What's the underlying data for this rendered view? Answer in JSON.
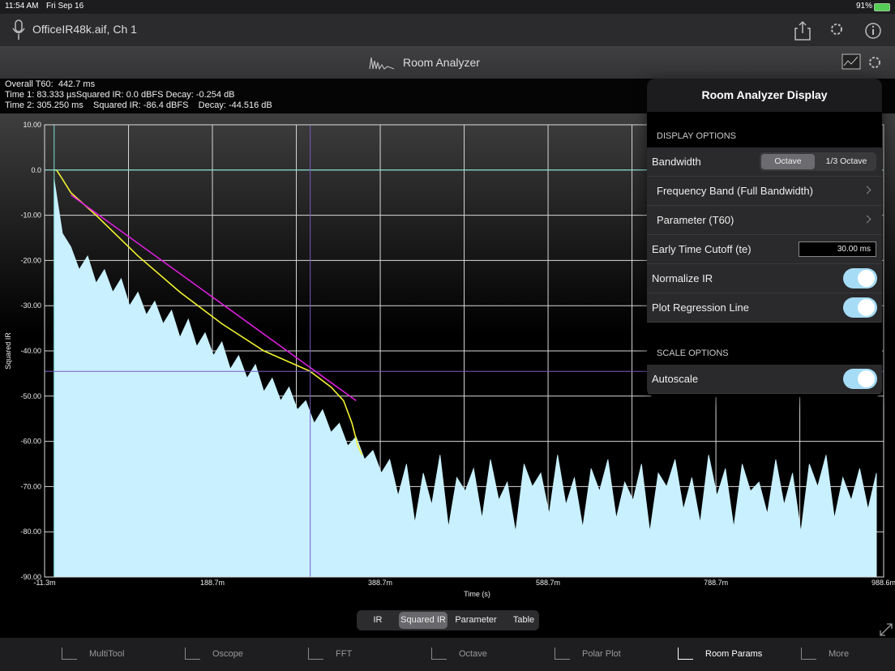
{
  "status_bar": {
    "time": "11:54 AM",
    "date": "Fri Sep 16",
    "battery": "91%"
  },
  "header": {
    "file": "OfficeIR48k.aif, Ch 1",
    "title": "Room Analyzer"
  },
  "info": [
    "Overall T60:  442.7 ms",
    "Time 1: 83.333 µsSquared IR: 0.0 dBFS Decay: -0.254 dB",
    "Time 2: 305.250 ms    Squared IR: -86.4 dBFS    Decay: -44.516 dB"
  ],
  "chart_data": {
    "type": "line",
    "xlabel": "Time (s)",
    "ylabel": "Squared IR",
    "xlim": [
      -0.0113,
      0.9886
    ],
    "ylim": [
      -90,
      10
    ],
    "xticks": [
      {
        "value": -0.0113,
        "label": "-11.3m"
      },
      {
        "value": 0.1887,
        "label": "188.7m"
      },
      {
        "value": 0.3887,
        "label": "388.7m"
      },
      {
        "value": 0.5887,
        "label": "588.7m"
      },
      {
        "value": 0.7887,
        "label": "788.7m"
      },
      {
        "value": 0.9886,
        "label": "988.6m"
      }
    ],
    "minor_xticks": [
      0.0887,
      0.2887,
      0.4887,
      0.6887,
      0.8887
    ],
    "yticks": [
      {
        "value": 10,
        "label": "10.00"
      },
      {
        "value": 0,
        "label": "0.0"
      },
      {
        "value": -10,
        "label": "-10.00"
      },
      {
        "value": -20,
        "label": "-20.00"
      },
      {
        "value": -30,
        "label": "-30.00"
      },
      {
        "value": -40,
        "label": "-40.00"
      },
      {
        "value": -50,
        "label": "-50.00"
      },
      {
        "value": -60,
        "label": "-60.00"
      },
      {
        "value": -70,
        "label": "-70.00"
      },
      {
        "value": -80,
        "label": "-80.00"
      },
      {
        "value": -90,
        "label": "-90.00"
      }
    ],
    "grid": true,
    "series": [
      {
        "style": "area",
        "color": "#c8f0ff",
        "x": [
          0,
          0.01,
          0.02,
          0.03,
          0.04,
          0.05,
          0.06,
          0.07,
          0.08,
          0.09,
          0.1,
          0.11,
          0.12,
          0.13,
          0.14,
          0.15,
          0.16,
          0.17,
          0.18,
          0.19,
          0.2,
          0.21,
          0.22,
          0.23,
          0.24,
          0.25,
          0.26,
          0.27,
          0.28,
          0.29,
          0.3,
          0.31,
          0.32,
          0.33,
          0.34,
          0.35,
          0.36,
          0.37,
          0.38,
          0.39,
          0.4,
          0.41,
          0.42,
          0.43,
          0.44,
          0.45,
          0.46,
          0.47,
          0.48,
          0.49,
          0.5,
          0.51,
          0.52,
          0.53,
          0.54,
          0.55,
          0.56,
          0.57,
          0.58,
          0.59,
          0.6,
          0.61,
          0.62,
          0.63,
          0.64,
          0.65,
          0.66,
          0.67,
          0.68,
          0.69,
          0.7,
          0.71,
          0.72,
          0.73,
          0.74,
          0.75,
          0.76,
          0.77,
          0.78,
          0.79,
          0.8,
          0.81,
          0.82,
          0.83,
          0.84,
          0.85,
          0.86,
          0.87,
          0.88,
          0.89,
          0.9,
          0.91,
          0.92,
          0.93,
          0.94,
          0.95,
          0.96,
          0.97,
          0.98
        ],
        "values": [
          -2,
          -14,
          -17,
          -22,
          -19,
          -25,
          -22,
          -27,
          -24,
          -30,
          -27,
          -32,
          -29,
          -34,
          -31,
          -37,
          -33,
          -39,
          -36,
          -41,
          -38,
          -44,
          -41,
          -46,
          -43,
          -49,
          -46,
          -51,
          -48,
          -53,
          -51,
          -56,
          -53,
          -58,
          -56,
          -61,
          -59,
          -64,
          -62,
          -67,
          -64,
          -72,
          -65,
          -78,
          -67,
          -74,
          -63,
          -79,
          -68,
          -71,
          -66,
          -77,
          -64,
          -73,
          -69,
          -80,
          -65,
          -70,
          -67,
          -76,
          -63,
          -74,
          -68,
          -79,
          -66,
          -71,
          -64,
          -77,
          -69,
          -73,
          -65,
          -80,
          -67,
          -70,
          -64,
          -75,
          -68,
          -78,
          -63,
          -72,
          -66,
          -79,
          -65,
          -71,
          -69,
          -76,
          -64,
          -74,
          -67,
          -80,
          -65,
          -70,
          -63,
          -77,
          -68,
          -73,
          -66,
          -75,
          -67
        ]
      },
      {
        "style": "line",
        "color": "#f2f230",
        "x": [
          0,
          0.003,
          0.01,
          0.02,
          0.05,
          0.1,
          0.15,
          0.2,
          0.25,
          0.305,
          0.33,
          0.345,
          0.355,
          0.362,
          0.367
        ],
        "values": [
          0,
          0,
          -2,
          -5,
          -10,
          -19,
          -27,
          -34,
          -40,
          -44.5,
          -48,
          -51,
          -56,
          -61,
          -63
        ]
      },
      {
        "style": "line",
        "color": "#e01ee0",
        "x": [
          0.02,
          0.36
        ],
        "values": [
          -5.5,
          -51
        ]
      }
    ],
    "cursors": [
      {
        "x": 8.33e-05,
        "y": 0,
        "color": "#7ee0d8"
      },
      {
        "x": 0.30525,
        "y": -44.516,
        "color": "#7a5cc0"
      }
    ]
  },
  "view_tabs": {
    "items": [
      "IR",
      "Squared IR",
      "Parameter",
      "Table"
    ],
    "selected": 1
  },
  "tab_bar": {
    "items": [
      "MultiTool",
      "Oscope",
      "FFT",
      "Octave",
      "Polar Plot",
      "Room Params",
      "More"
    ],
    "selected": 5
  },
  "popover": {
    "title": "Room Analyzer Display",
    "sections": [
      {
        "header": "DISPLAY OPTIONS",
        "rows": [
          {
            "label": "Bandwidth",
            "segments": [
              "Octave",
              "1/3 Octave"
            ],
            "selected": 0
          },
          {
            "label": "Frequency Band (Full Bandwidth)",
            "chevron": true
          },
          {
            "label": "Parameter (T60)",
            "chevron": true
          },
          {
            "label": "Early Time Cutoff (te)",
            "field": "30.00 ms"
          },
          {
            "label": "Normalize IR",
            "toggle": true
          },
          {
            "label": "Plot Regression Line",
            "toggle": true
          }
        ]
      },
      {
        "header": "SCALE OPTIONS",
        "rows": [
          {
            "label": "Autoscale",
            "toggle": true
          }
        ]
      }
    ]
  }
}
